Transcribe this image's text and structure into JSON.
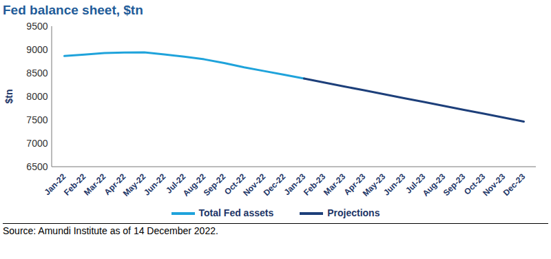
{
  "chart_data": {
    "type": "line",
    "title": "Fed balance sheet, $tn",
    "y_label": "$tn",
    "source": "Source: Amundi Institute as of 14 December 2022.",
    "categories": [
      "Jan-22",
      "Feb-22",
      "Mar-22",
      "Apr-22",
      "May-22",
      "Jun-22",
      "Jul-22",
      "Aug-22",
      "Sep-22",
      "Oct-22",
      "Nov-22",
      "Dec-22",
      "Jan-23",
      "Feb-23",
      "Mar-23",
      "Apr-23",
      "May-23",
      "Jun-23",
      "Jul-23",
      "Aug-23",
      "Sep-23",
      "Oct-23",
      "Nov-23",
      "Dec-23"
    ],
    "series": [
      {
        "name": "Total Fed assets",
        "color": "#1fa3db",
        "values": [
          8870,
          8900,
          8935,
          8945,
          8950,
          8905,
          8855,
          8800,
          8720,
          8630,
          8550,
          8470,
          8390,
          null,
          null,
          null,
          null,
          null,
          null,
          null,
          null,
          null,
          null,
          null
        ]
      },
      {
        "name": "Projections",
        "color": "#1d3f7a",
        "values": [
          null,
          null,
          null,
          null,
          null,
          null,
          null,
          null,
          null,
          null,
          null,
          null,
          8390,
          8305,
          8220,
          8140,
          8055,
          7970,
          7890,
          7805,
          7720,
          7640,
          7555,
          7470
        ]
      }
    ],
    "ylim": [
      6500,
      9500
    ],
    "yticks": [
      6500,
      7000,
      7500,
      8000,
      8500,
      9000,
      9500
    ],
    "grid": false,
    "legend": "bottom"
  }
}
